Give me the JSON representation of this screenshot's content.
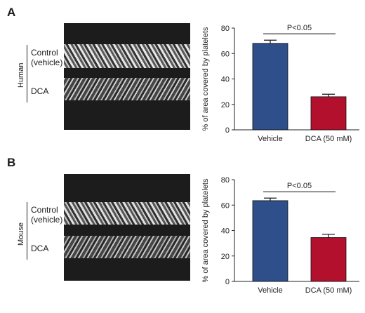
{
  "panels": [
    {
      "letter": "A",
      "species": "Human",
      "row_labels": {
        "control_line1": "Control",
        "control_line2": "(vehicle)",
        "treated": "DCA"
      }
    },
    {
      "letter": "B",
      "species": "Mouse",
      "row_labels": {
        "control_line1": "Control",
        "control_line2": "(vehicle)",
        "treated": "DCA"
      }
    }
  ],
  "chart_data": [
    {
      "type": "bar",
      "categories": [
        "Vehicle",
        "DCA (50 mM)"
      ],
      "values": [
        68,
        26
      ],
      "errors": [
        2.5,
        2
      ],
      "colors": [
        "#2e4f8a",
        "#b3102e"
      ],
      "ylabel": "% of area covered by platelets",
      "ylim": [
        0,
        80
      ],
      "yticks": [
        0,
        20,
        40,
        60,
        80
      ],
      "annotation": "P<0.05"
    },
    {
      "type": "bar",
      "categories": [
        "Vehicle",
        "DCA (50 mM)"
      ],
      "values": [
        63.5,
        34.5
      ],
      "errors": [
        2,
        2.5
      ],
      "colors": [
        "#2e4f8a",
        "#b3102e"
      ],
      "ylabel": "% of area covered by platelets",
      "ylim": [
        0,
        80
      ],
      "yticks": [
        0,
        20,
        40,
        60,
        80
      ],
      "annotation": "P<0.05"
    }
  ]
}
